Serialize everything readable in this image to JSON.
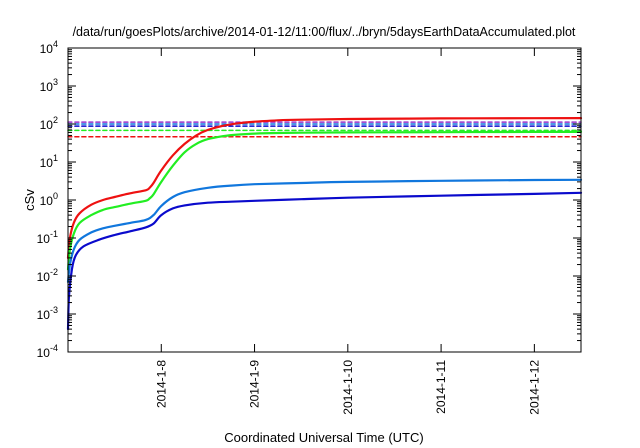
{
  "chart_data": {
    "type": "line",
    "title": "/data/run/goesPlots/archive/2014-01-12/11:00/flux/../bryn/5daysEarthDataAccumulated.plot",
    "xlabel": "Coordinated Universal Time (UTC)",
    "ylabel": "cSv",
    "yscale": "log",
    "ylim": [
      0.0001,
      10000
    ],
    "y_ticks": [
      {
        "value": 0.0001,
        "base": "10",
        "exp": "-4"
      },
      {
        "value": 0.001,
        "base": "10",
        "exp": "-3"
      },
      {
        "value": 0.01,
        "base": "10",
        "exp": "-2"
      },
      {
        "value": 0.1,
        "base": "10",
        "exp": "-1"
      },
      {
        "value": 1,
        "base": "10",
        "exp": "0"
      },
      {
        "value": 10,
        "base": "10",
        "exp": "1"
      },
      {
        "value": 100,
        "base": "10",
        "exp": "2"
      },
      {
        "value": 1000,
        "base": "10",
        "exp": "3"
      },
      {
        "value": 10000,
        "base": "10",
        "exp": "4"
      }
    ],
    "xlim": [
      "2014-01-07 00:00",
      "2014-01-12 12:00"
    ],
    "x_ticks": [
      "2014-1-8",
      "2014-1-9",
      "2014-1-10",
      "2014-1-11",
      "2014-1-12"
    ],
    "grid": false,
    "legend": "none",
    "series": [
      {
        "color": "#ee1111",
        "style": "solid",
        "x": [
          "2014-01-07 00:00",
          "2014-01-07 00:30",
          "2014-01-07 01:30",
          "2014-01-07 03:00",
          "2014-01-07 06:00",
          "2014-01-07 09:00",
          "2014-01-07 12:00",
          "2014-01-07 16:00",
          "2014-01-07 20:00",
          "2014-01-07 21:00",
          "2014-01-07 22:00",
          "2014-01-08 00:00",
          "2014-01-08 03:00",
          "2014-01-08 06:00",
          "2014-01-08 09:00",
          "2014-01-08 12:00",
          "2014-01-08 16:00",
          "2014-01-08 20:00",
          "2014-01-09 00:00",
          "2014-01-09 06:00",
          "2014-01-09 12:00",
          "2014-01-10 00:00",
          "2014-01-11 00:00",
          "2014-01-12 00:00",
          "2014-01-12 12:00"
        ],
        "y": [
          0.03,
          0.1,
          0.25,
          0.45,
          0.75,
          1.0,
          1.2,
          1.5,
          1.8,
          2.1,
          2.8,
          6.0,
          15,
          30,
          50,
          70,
          90,
          105,
          115,
          125,
          130,
          135,
          140,
          142,
          143
        ]
      },
      {
        "color": "#22ee22",
        "style": "solid",
        "x": [
          "2014-01-07 00:00",
          "2014-01-07 00:30",
          "2014-01-07 01:30",
          "2014-01-07 03:00",
          "2014-01-07 06:00",
          "2014-01-07 09:00",
          "2014-01-07 12:00",
          "2014-01-07 16:00",
          "2014-01-07 20:00",
          "2014-01-07 21:00",
          "2014-01-07 22:00",
          "2014-01-08 00:00",
          "2014-01-08 03:00",
          "2014-01-08 06:00",
          "2014-01-08 09:00",
          "2014-01-08 12:00",
          "2014-01-08 16:00",
          "2014-01-08 20:00",
          "2014-01-09 00:00",
          "2014-01-09 06:00",
          "2014-01-09 12:00",
          "2014-01-10 00:00",
          "2014-01-11 00:00",
          "2014-01-12 00:00",
          "2014-01-12 12:00"
        ],
        "y": [
          0.015,
          0.05,
          0.13,
          0.25,
          0.4,
          0.55,
          0.65,
          0.8,
          0.95,
          1.1,
          1.4,
          3.0,
          8,
          18,
          30,
          40,
          48,
          53,
          56,
          58,
          59,
          60,
          61,
          62,
          62
        ]
      },
      {
        "color": "#1177dd",
        "style": "solid",
        "x": [
          "2014-01-07 00:00",
          "2014-01-07 00:30",
          "2014-01-07 01:30",
          "2014-01-07 03:00",
          "2014-01-07 06:00",
          "2014-01-07 09:00",
          "2014-01-07 12:00",
          "2014-01-07 16:00",
          "2014-01-07 20:00",
          "2014-01-07 22:00",
          "2014-01-08 00:00",
          "2014-01-08 03:00",
          "2014-01-08 06:00",
          "2014-01-08 12:00",
          "2014-01-08 18:00",
          "2014-01-09 00:00",
          "2014-01-09 12:00",
          "2014-01-10 00:00",
          "2014-01-11 00:00",
          "2014-01-12 00:00",
          "2014-01-12 12:00"
        ],
        "y": [
          0.007,
          0.02,
          0.05,
          0.09,
          0.14,
          0.18,
          0.21,
          0.25,
          0.3,
          0.4,
          0.7,
          1.2,
          1.6,
          2.1,
          2.4,
          2.6,
          2.8,
          3.0,
          3.2,
          3.35,
          3.4
        ]
      },
      {
        "color": "#0a0acc",
        "style": "solid",
        "x": [
          "2014-01-07 00:00",
          "2014-01-07 00:15",
          "2014-01-07 01:00",
          "2014-01-07 02:00",
          "2014-01-07 04:00",
          "2014-01-07 08:00",
          "2014-01-07 12:00",
          "2014-01-07 16:00",
          "2014-01-07 20:00",
          "2014-01-07 22:00",
          "2014-01-08 00:00",
          "2014-01-08 03:00",
          "2014-01-08 06:00",
          "2014-01-08 12:00",
          "2014-01-08 18:00",
          "2014-01-09 00:00",
          "2014-01-09 12:00",
          "2014-01-10 00:00",
          "2014-01-11 00:00",
          "2014-01-12 00:00",
          "2014-01-12 12:00"
        ],
        "y": [
          0.0004,
          0.003,
          0.015,
          0.035,
          0.06,
          0.09,
          0.12,
          0.15,
          0.19,
          0.24,
          0.4,
          0.6,
          0.72,
          0.85,
          0.9,
          0.95,
          1.05,
          1.15,
          1.3,
          1.45,
          1.55
        ]
      },
      {
        "color": "#ee1111",
        "style": "dashed",
        "x": [
          "2014-01-07 00:00",
          "2014-01-12 12:00"
        ],
        "y": [
          46,
          46
        ]
      },
      {
        "color": "#22ee22",
        "style": "dashed",
        "x": [
          "2014-01-07 00:00",
          "2014-01-12 12:00"
        ],
        "y": [
          68,
          68
        ]
      },
      {
        "color": "#1177dd",
        "style": "dashed",
        "x": [
          "2014-01-07 00:00",
          "2014-01-12 12:00"
        ],
        "y": [
          100,
          100
        ]
      },
      {
        "color": "#0a0acc",
        "style": "dashed",
        "x": [
          "2014-01-07 00:00",
          "2014-01-12 12:00"
        ],
        "y": [
          88,
          88
        ]
      },
      {
        "color": "#9933cc",
        "style": "dashed",
        "x": [
          "2014-01-07 00:00",
          "2014-01-12 12:00"
        ],
        "y": [
          112,
          112
        ]
      }
    ]
  }
}
